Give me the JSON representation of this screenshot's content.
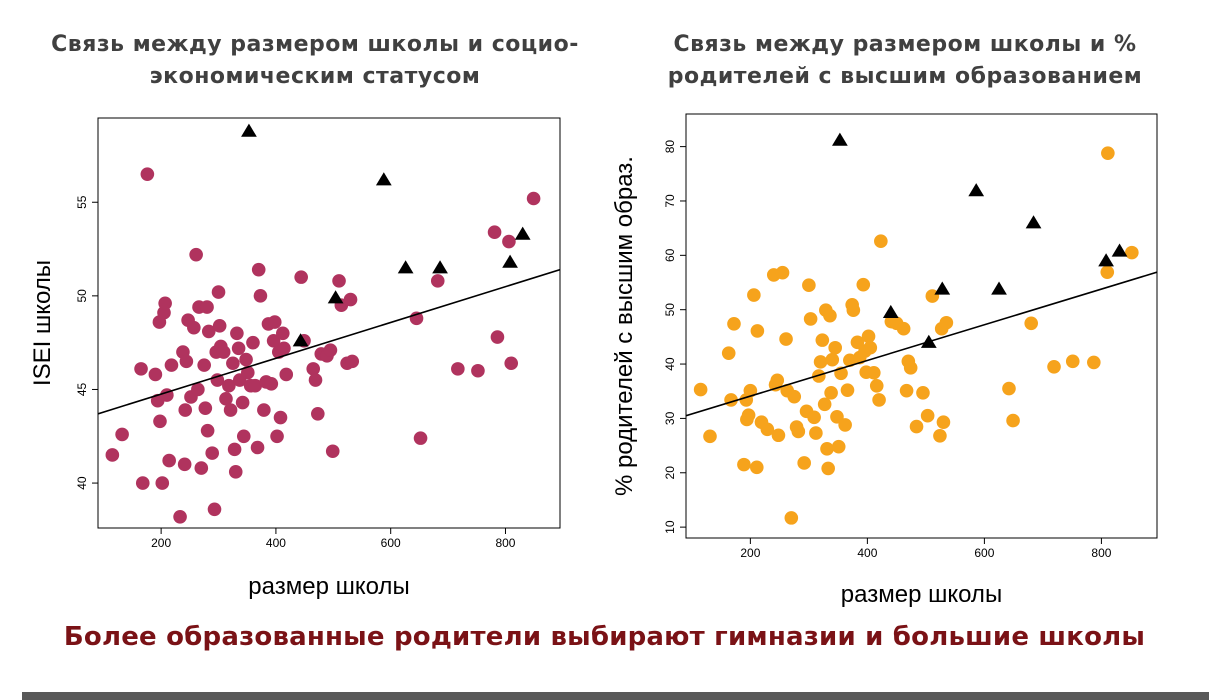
{
  "page": {
    "headline": "Более образованные родители выбирают гимназии и большие школы"
  },
  "chart_data": [
    {
      "type": "scatter",
      "title": "Связь между размером школы и социо-экономическим статусом",
      "xlabel": "размер школы",
      "ylabel": "ISEI школы",
      "xlim": [
        90,
        895
      ],
      "ylim": [
        37.6,
        59.5
      ],
      "x_ticks": [
        200,
        400,
        600,
        800
      ],
      "y_ticks": [
        40,
        45,
        50,
        55
      ],
      "grid": false,
      "colors": {
        "circles": "#b0335e",
        "triangles": "#000000",
        "line": "#000000"
      },
      "regression_line": {
        "x": [
          90,
          895
        ],
        "y": [
          43.7,
          51.4
        ]
      },
      "series": [
        {
          "marker": "circle",
          "points": [
            [
              115,
              41.5
            ],
            [
              132,
              42.6
            ],
            [
              165,
              46.1
            ],
            [
              168,
              40.0
            ],
            [
              176,
              56.5
            ],
            [
              190,
              45.8
            ],
            [
              194,
              44.4
            ],
            [
              197,
              48.6
            ],
            [
              198,
              43.3
            ],
            [
              202,
              40.0
            ],
            [
              205,
              49.1
            ],
            [
              207,
              49.6
            ],
            [
              210,
              44.7
            ],
            [
              214,
              41.2
            ],
            [
              218,
              46.3
            ],
            [
              233,
              38.2
            ],
            [
              238,
              47.0
            ],
            [
              241,
              41.0
            ],
            [
              242,
              43.9
            ],
            [
              244,
              46.5
            ],
            [
              247,
              48.7
            ],
            [
              252,
              44.6
            ],
            [
              257,
              48.3
            ],
            [
              261,
              52.2
            ],
            [
              264,
              45.0
            ],
            [
              266,
              49.4
            ],
            [
              270,
              40.8
            ],
            [
              275,
              46.3
            ],
            [
              277,
              44.0
            ],
            [
              280,
              49.4
            ],
            [
              281,
              42.8
            ],
            [
              283,
              48.1
            ],
            [
              289,
              41.6
            ],
            [
              293,
              38.6
            ],
            [
              296,
              47.0
            ],
            [
              298,
              45.5
            ],
            [
              300,
              50.2
            ],
            [
              302,
              48.4
            ],
            [
              304,
              47.3
            ],
            [
              309,
              47.0
            ],
            [
              313,
              44.5
            ],
            [
              318,
              45.2
            ],
            [
              321,
              43.9
            ],
            [
              325,
              46.4
            ],
            [
              328,
              41.8
            ],
            [
              330,
              40.6
            ],
            [
              332,
              48.0
            ],
            [
              335,
              47.2
            ],
            [
              337,
              45.5
            ],
            [
              342,
              44.3
            ],
            [
              344,
              42.5
            ],
            [
              348,
              46.6
            ],
            [
              351,
              45.9
            ],
            [
              356,
              45.2
            ],
            [
              360,
              47.5
            ],
            [
              364,
              45.2
            ],
            [
              368,
              41.9
            ],
            [
              370,
              51.4
            ],
            [
              373,
              50.0
            ],
            [
              379,
              43.9
            ],
            [
              383,
              45.4
            ],
            [
              387,
              48.5
            ],
            [
              392,
              45.3
            ],
            [
              396,
              47.6
            ],
            [
              398,
              48.6
            ],
            [
              402,
              42.5
            ],
            [
              405,
              47.0
            ],
            [
              408,
              43.5
            ],
            [
              412,
              48.0
            ],
            [
              414,
              47.2
            ],
            [
              418,
              45.8
            ],
            [
              444,
              51.0
            ],
            [
              449,
              47.6
            ],
            [
              465,
              46.1
            ],
            [
              469,
              45.5
            ],
            [
              473,
              43.7
            ],
            [
              479,
              46.9
            ],
            [
              489,
              46.8
            ],
            [
              495,
              47.1
            ],
            [
              499,
              41.7
            ],
            [
              510,
              50.8
            ],
            [
              514,
              49.5
            ],
            [
              524,
              46.4
            ],
            [
              530,
              49.8
            ],
            [
              533,
              46.5
            ],
            [
              645,
              48.8
            ],
            [
              652,
              42.4
            ],
            [
              682,
              50.8
            ],
            [
              717,
              46.1
            ],
            [
              752,
              46.0
            ],
            [
              781,
              53.4
            ],
            [
              786,
              47.8
            ],
            [
              806,
              52.9
            ],
            [
              810,
              46.4
            ],
            [
              849,
              55.2
            ]
          ]
        },
        {
          "marker": "triangle",
          "points": [
            [
              353,
              58.8
            ],
            [
              443,
              47.6
            ],
            [
              504,
              49.9
            ],
            [
              588,
              56.2
            ],
            [
              626,
              51.5
            ],
            [
              686,
              51.5
            ],
            [
              808,
              51.8
            ],
            [
              830,
              53.3
            ]
          ]
        }
      ]
    },
    {
      "type": "scatter",
      "title": "Связь между размером школы и % родителей с высшим образованием",
      "xlabel": "размер школы",
      "ylabel": "% родителей с высшим образ.",
      "xlim": [
        90,
        895
      ],
      "ylim": [
        8.0,
        86.0
      ],
      "x_ticks": [
        200,
        400,
        600,
        800
      ],
      "y_ticks": [
        10,
        20,
        30,
        40,
        50,
        60,
        70,
        80
      ],
      "grid": false,
      "colors": {
        "circles": "#f6a31c",
        "triangles": "#000000",
        "line": "#000000"
      },
      "regression_line": {
        "x": [
          90,
          895
        ],
        "y": [
          30.5,
          56.9
        ]
      },
      "series": [
        {
          "marker": "circle",
          "points": [
            [
              115,
              35.3
            ],
            [
              131,
              26.7
            ],
            [
              163,
              42.0
            ],
            [
              167,
              33.4
            ],
            [
              172,
              47.4
            ],
            [
              189,
              21.5
            ],
            [
              193,
              33.4
            ],
            [
              194,
              29.8
            ],
            [
              197,
              30.6
            ],
            [
              200,
              35.1
            ],
            [
              206,
              52.7
            ],
            [
              211,
              21.0
            ],
            [
              212,
              46.1
            ],
            [
              219,
              29.3
            ],
            [
              229,
              28.0
            ],
            [
              240,
              56.4
            ],
            [
              243,
              36.2
            ],
            [
              246,
              37.0
            ],
            [
              248,
              26.9
            ],
            [
              255,
              56.8
            ],
            [
              261,
              44.6
            ],
            [
              263,
              35.1
            ],
            [
              270,
              11.7
            ],
            [
              275,
              34.0
            ],
            [
              279,
              28.4
            ],
            [
              282,
              27.6
            ],
            [
              292,
              21.8
            ],
            [
              296,
              31.3
            ],
            [
              300,
              54.5
            ],
            [
              303,
              48.3
            ],
            [
              309,
              30.2
            ],
            [
              312,
              27.3
            ],
            [
              317,
              37.8
            ],
            [
              320,
              40.4
            ],
            [
              323,
              44.4
            ],
            [
              327,
              32.6
            ],
            [
              329,
              49.9
            ],
            [
              331,
              24.4
            ],
            [
              333,
              20.8
            ],
            [
              336,
              48.9
            ],
            [
              338,
              34.7
            ],
            [
              340,
              40.8
            ],
            [
              345,
              43.0
            ],
            [
              348,
              30.3
            ],
            [
              351,
              24.8
            ],
            [
              355,
              38.3
            ],
            [
              362,
              28.8
            ],
            [
              366,
              35.2
            ],
            [
              370,
              40.7
            ],
            [
              374,
              50.9
            ],
            [
              376,
              49.9
            ],
            [
              383,
              44.0
            ],
            [
              387,
              41.2
            ],
            [
              393,
              54.6
            ],
            [
              396,
              42.4
            ],
            [
              398,
              38.5
            ],
            [
              402,
              45.1
            ],
            [
              405,
              43.0
            ],
            [
              411,
              38.4
            ],
            [
              416,
              36.0
            ],
            [
              420,
              33.4
            ],
            [
              423,
              62.6
            ],
            [
              441,
              47.8
            ],
            [
              450,
              47.5
            ],
            [
              462,
              46.5
            ],
            [
              467,
              35.1
            ],
            [
              470,
              40.5
            ],
            [
              474,
              39.3
            ],
            [
              484,
              28.5
            ],
            [
              495,
              34.7
            ],
            [
              503,
              30.5
            ],
            [
              511,
              52.5
            ],
            [
              524,
              26.8
            ],
            [
              527,
              46.5
            ],
            [
              530,
              29.3
            ],
            [
              535,
              47.6
            ],
            [
              642,
              35.5
            ],
            [
              649,
              29.6
            ],
            [
              680,
              47.5
            ],
            [
              719,
              39.5
            ],
            [
              751,
              40.5
            ],
            [
              787,
              40.3
            ],
            [
              810,
              56.9
            ],
            [
              811,
              78.8
            ],
            [
              852,
              60.5
            ]
          ]
        },
        {
          "marker": "triangle",
          "points": [
            [
              353,
              81.2
            ],
            [
              440,
              49.5
            ],
            [
              505,
              44.0
            ],
            [
              528,
              53.8
            ],
            [
              586,
              71.9
            ],
            [
              625,
              53.8
            ],
            [
              684,
              66.0
            ],
            [
              808,
              59.0
            ],
            [
              831,
              60.8
            ]
          ]
        }
      ]
    }
  ]
}
